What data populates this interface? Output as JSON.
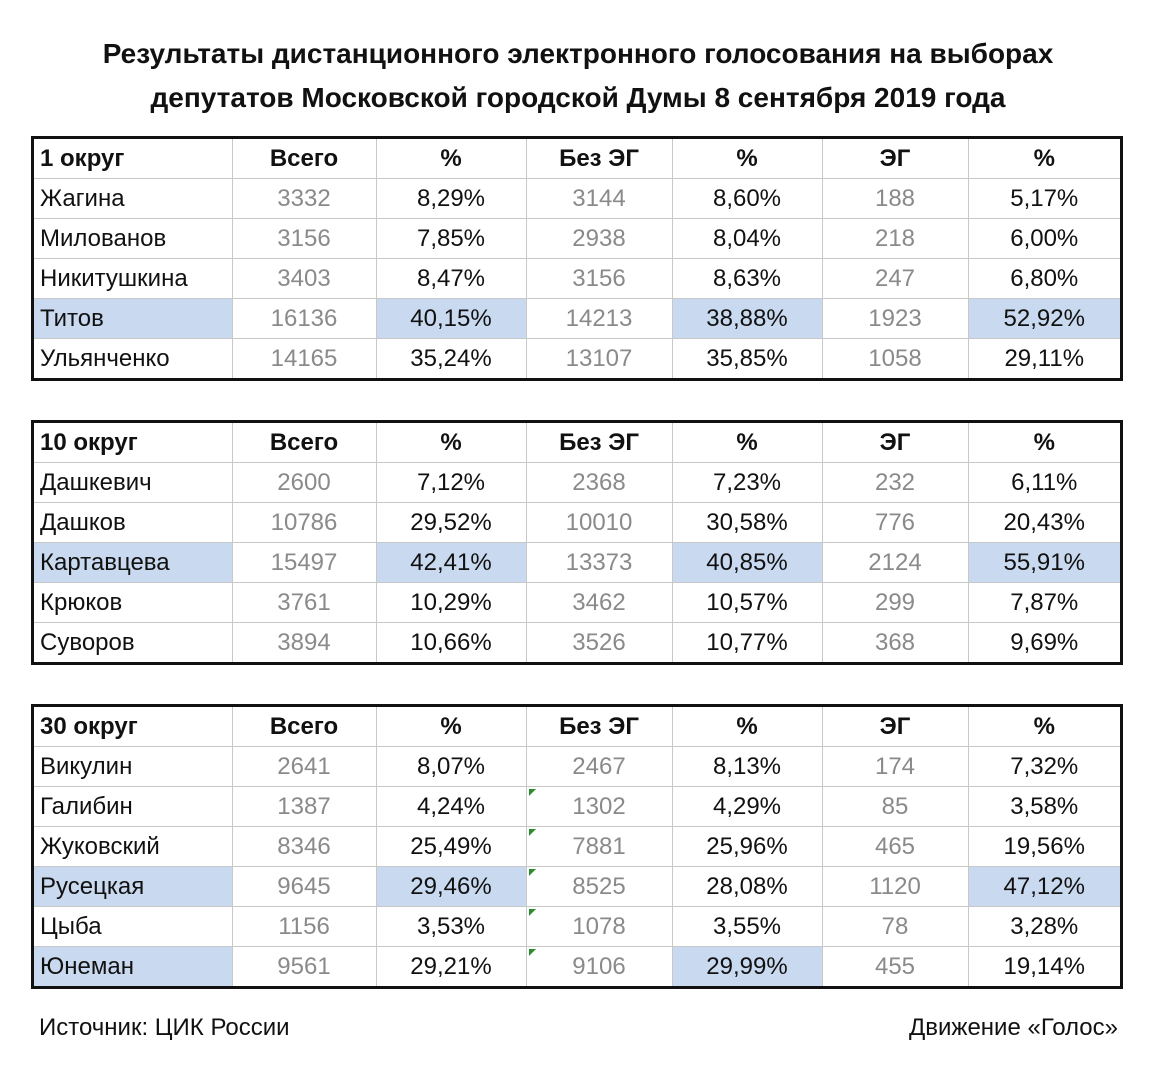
{
  "title_line1": "Результаты дистанционного электронного голосования на выборах",
  "title_line2": "депутатов Московской городской Думы 8 сентября 2019 года",
  "highlight_color": "#c9d9ef",
  "headers": {
    "total": "Всего",
    "pct": "%",
    "no_eg": "Без ЭГ",
    "eg": "ЭГ"
  },
  "tables": [
    {
      "district": "1 округ",
      "rows": [
        {
          "name": "Жагина",
          "total": "3332",
          "pct": "8,29%",
          "no_eg": "3144",
          "no_eg_pct": "8,60%",
          "eg": "188",
          "eg_pct": "5,17%"
        },
        {
          "name": "Милованов",
          "total": "3156",
          "pct": "7,85%",
          "no_eg": "2938",
          "no_eg_pct": "8,04%",
          "eg": "218",
          "eg_pct": "6,00%"
        },
        {
          "name": "Никитушкина",
          "total": "3403",
          "pct": "8,47%",
          "no_eg": "3156",
          "no_eg_pct": "8,63%",
          "eg": "247",
          "eg_pct": "6,80%"
        },
        {
          "name": "Титов",
          "total": "16136",
          "pct": "40,15%",
          "no_eg": "14213",
          "no_eg_pct": "38,88%",
          "eg": "1923",
          "eg_pct": "52,92%"
        },
        {
          "name": "Ульянченко",
          "total": "14165",
          "pct": "35,24%",
          "no_eg": "13107",
          "no_eg_pct": "35,85%",
          "eg": "1058",
          "eg_pct": "29,11%"
        }
      ]
    },
    {
      "district": "10 округ",
      "rows": [
        {
          "name": "Дашкевич",
          "total": "2600",
          "pct": "7,12%",
          "no_eg": "2368",
          "no_eg_pct": "7,23%",
          "eg": "232",
          "eg_pct": "6,11%"
        },
        {
          "name": "Дашков",
          "total": "10786",
          "pct": "29,52%",
          "no_eg": "10010",
          "no_eg_pct": "30,58%",
          "eg": "776",
          "eg_pct": "20,43%"
        },
        {
          "name": "Картавцева",
          "total": "15497",
          "pct": "42,41%",
          "no_eg": "13373",
          "no_eg_pct": "40,85%",
          "eg": "2124",
          "eg_pct": "55,91%"
        },
        {
          "name": "Крюков",
          "total": "3761",
          "pct": "10,29%",
          "no_eg": "3462",
          "no_eg_pct": "10,57%",
          "eg": "299",
          "eg_pct": "7,87%"
        },
        {
          "name": "Суворов",
          "total": "3894",
          "pct": "10,66%",
          "no_eg": "3526",
          "no_eg_pct": "10,77%",
          "eg": "368",
          "eg_pct": "9,69%"
        }
      ]
    },
    {
      "district": "30 округ",
      "rows": [
        {
          "name": "Викулин",
          "total": "2641",
          "pct": "8,07%",
          "no_eg": "2467",
          "no_eg_pct": "8,13%",
          "eg": "174",
          "eg_pct": "7,32%"
        },
        {
          "name": "Галибин",
          "total": "1387",
          "pct": "4,24%",
          "no_eg": "1302",
          "no_eg_pct": "4,29%",
          "eg": "85",
          "eg_pct": "3,58%"
        },
        {
          "name": "Жуковский",
          "total": "8346",
          "pct": "25,49%",
          "no_eg": "7881",
          "no_eg_pct": "25,96%",
          "eg": "465",
          "eg_pct": "19,56%"
        },
        {
          "name": "Русецкая",
          "total": "9645",
          "pct": "29,46%",
          "no_eg": "8525",
          "no_eg_pct": "28,08%",
          "eg": "1120",
          "eg_pct": "47,12%"
        },
        {
          "name": "Цыба",
          "total": "1156",
          "pct": "3,53%",
          "no_eg": "1078",
          "no_eg_pct": "3,55%",
          "eg": "78",
          "eg_pct": "3,28%"
        },
        {
          "name": "Юнеман",
          "total": "9561",
          "pct": "29,21%",
          "no_eg": "9106",
          "no_eg_pct": "29,99%",
          "eg": "455",
          "eg_pct": "19,14%"
        }
      ]
    }
  ],
  "footer": {
    "source": "Источник: ЦИК России",
    "org": "Движение «Голос»"
  }
}
